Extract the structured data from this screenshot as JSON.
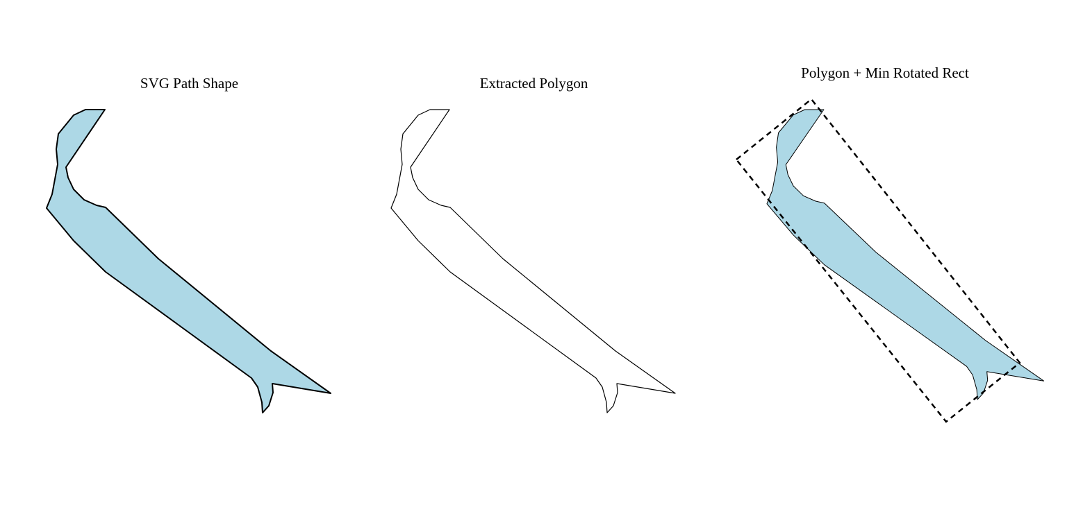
{
  "panels": [
    {
      "title": "SVG Path Shape",
      "style": "filled-thick-outline"
    },
    {
      "title": "Extracted Polygon",
      "style": "outline-only"
    },
    {
      "title": "Polygon + Min Rotated Rect",
      "style": "filled-with-dashed-rect"
    }
  ],
  "colors": {
    "shape_fill": "#add8e6",
    "stroke": "#000000",
    "background": "#ffffff"
  }
}
